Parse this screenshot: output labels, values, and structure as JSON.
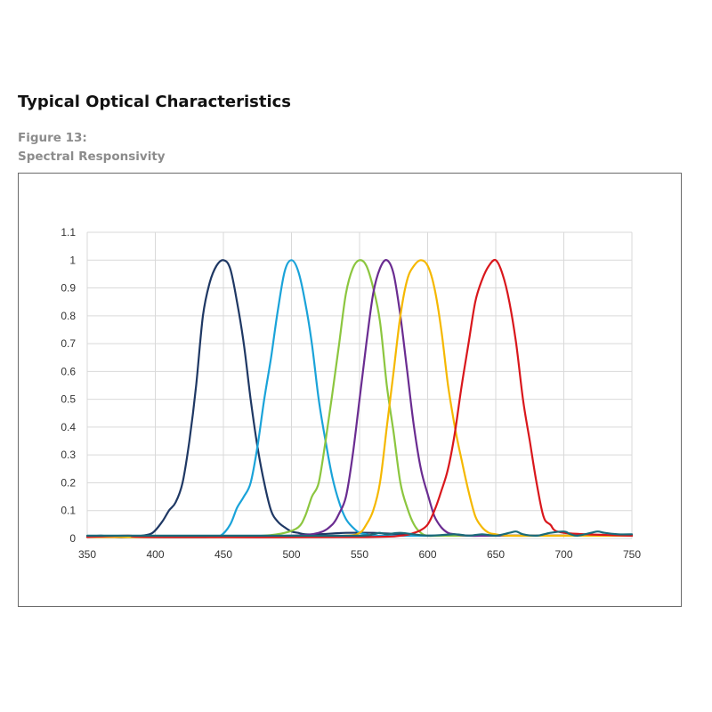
{
  "header": {
    "title": "Typical Optical Characteristics",
    "figure_number": "Figure 13:",
    "figure_title": "Spectral Responsivity"
  },
  "chart_data": {
    "type": "line",
    "title": "",
    "xlabel": "",
    "ylabel": "",
    "xlim": [
      350,
      750
    ],
    "ylim": [
      0,
      1.1
    ],
    "x_ticks": [
      350,
      400,
      450,
      500,
      550,
      600,
      650,
      700,
      750
    ],
    "y_ticks": [
      0,
      0.1,
      0.2,
      0.3,
      0.4,
      0.5,
      0.6,
      0.7,
      0.8,
      0.9,
      1,
      1.1
    ],
    "grid": true,
    "legend": "none",
    "series": [
      {
        "color": "#1f3864",
        "x": [
          350,
          360,
          370,
          380,
          390,
          398,
          405,
          410,
          415,
          420,
          425,
          430,
          435,
          440,
          445,
          450,
          455,
          460,
          465,
          470,
          475,
          480,
          485,
          490,
          495,
          500,
          505,
          510,
          520,
          540,
          560,
          580,
          600,
          650,
          700,
          750
        ],
        "y": [
          0.005,
          0.01,
          0.005,
          0.005,
          0.01,
          0.02,
          0.06,
          0.1,
          0.13,
          0.2,
          0.35,
          0.55,
          0.8,
          0.92,
          0.98,
          1.0,
          0.97,
          0.85,
          0.7,
          0.5,
          0.33,
          0.2,
          0.1,
          0.06,
          0.04,
          0.025,
          0.02,
          0.015,
          0.015,
          0.02,
          0.02,
          0.015,
          0.01,
          0.01,
          0.01,
          0.01
        ]
      },
      {
        "color": "#1aa3d9",
        "x": [
          350,
          400,
          440,
          448,
          455,
          460,
          465,
          470,
          475,
          480,
          485,
          490,
          495,
          500,
          505,
          510,
          515,
          520,
          525,
          530,
          535,
          540,
          545,
          550,
          555,
          560,
          580,
          600,
          650,
          700,
          750
        ],
        "y": [
          0.005,
          0.005,
          0.005,
          0.01,
          0.05,
          0.11,
          0.15,
          0.2,
          0.33,
          0.5,
          0.65,
          0.82,
          0.96,
          1.0,
          0.96,
          0.85,
          0.7,
          0.5,
          0.35,
          0.22,
          0.13,
          0.07,
          0.04,
          0.02,
          0.015,
          0.01,
          0.01,
          0.01,
          0.01,
          0.01,
          0.01
        ]
      },
      {
        "color": "#8cc63f",
        "x": [
          350,
          450,
          480,
          495,
          505,
          510,
          515,
          520,
          525,
          530,
          535,
          540,
          545,
          550,
          555,
          560,
          565,
          570,
          575,
          580,
          585,
          590,
          595,
          600,
          610,
          650,
          700,
          750
        ],
        "y": [
          0.005,
          0.005,
          0.01,
          0.02,
          0.04,
          0.08,
          0.15,
          0.2,
          0.35,
          0.52,
          0.7,
          0.88,
          0.97,
          1.0,
          0.98,
          0.9,
          0.78,
          0.55,
          0.38,
          0.2,
          0.11,
          0.05,
          0.02,
          0.01,
          0.01,
          0.01,
          0.01,
          0.01
        ]
      },
      {
        "color": "#6a2c91",
        "x": [
          350,
          450,
          500,
          520,
          530,
          535,
          540,
          545,
          550,
          555,
          560,
          565,
          570,
          575,
          580,
          585,
          590,
          595,
          600,
          605,
          610,
          615,
          620,
          630,
          650,
          700,
          750
        ],
        "y": [
          0.005,
          0.005,
          0.01,
          0.02,
          0.05,
          0.09,
          0.15,
          0.3,
          0.5,
          0.7,
          0.88,
          0.97,
          1.0,
          0.95,
          0.8,
          0.6,
          0.4,
          0.25,
          0.16,
          0.08,
          0.04,
          0.02,
          0.015,
          0.01,
          0.01,
          0.01,
          0.01
        ]
      },
      {
        "color": "#f5b800",
        "x": [
          350,
          500,
          540,
          550,
          555,
          560,
          565,
          570,
          575,
          580,
          585,
          590,
          595,
          600,
          605,
          610,
          615,
          620,
          625,
          630,
          635,
          640,
          645,
          650,
          660,
          700,
          750
        ],
        "y": [
          0.005,
          0.005,
          0.01,
          0.02,
          0.05,
          0.1,
          0.2,
          0.4,
          0.6,
          0.8,
          0.93,
          0.98,
          1.0,
          0.98,
          0.9,
          0.75,
          0.55,
          0.4,
          0.28,
          0.17,
          0.08,
          0.04,
          0.02,
          0.015,
          0.01,
          0.01,
          0.01
        ]
      },
      {
        "color": "#d9171c",
        "x": [
          350,
          380,
          400,
          550,
          580,
          590,
          595,
          600,
          605,
          610,
          615,
          620,
          625,
          630,
          635,
          640,
          645,
          650,
          655,
          660,
          665,
          670,
          675,
          680,
          685,
          690,
          700,
          750
        ],
        "y": [
          0.005,
          0.01,
          0.005,
          0.005,
          0.01,
          0.02,
          0.03,
          0.05,
          0.1,
          0.17,
          0.25,
          0.38,
          0.55,
          0.7,
          0.85,
          0.93,
          0.98,
          1.0,
          0.95,
          0.85,
          0.7,
          0.5,
          0.35,
          0.2,
          0.08,
          0.05,
          0.02,
          0.01
        ]
      },
      {
        "color": "#1a6b7a",
        "x": [
          350,
          450,
          500,
          550,
          560,
          565,
          570,
          580,
          600,
          620,
          630,
          640,
          650,
          660,
          665,
          670,
          680,
          690,
          700,
          705,
          710,
          720,
          725,
          730,
          740,
          750
        ],
        "y": [
          0.01,
          0.01,
          0.01,
          0.01,
          0.015,
          0.02,
          0.015,
          0.02,
          0.01,
          0.015,
          0.01,
          0.015,
          0.01,
          0.02,
          0.025,
          0.015,
          0.01,
          0.02,
          0.025,
          0.015,
          0.01,
          0.02,
          0.025,
          0.02,
          0.015,
          0.015
        ]
      }
    ]
  }
}
